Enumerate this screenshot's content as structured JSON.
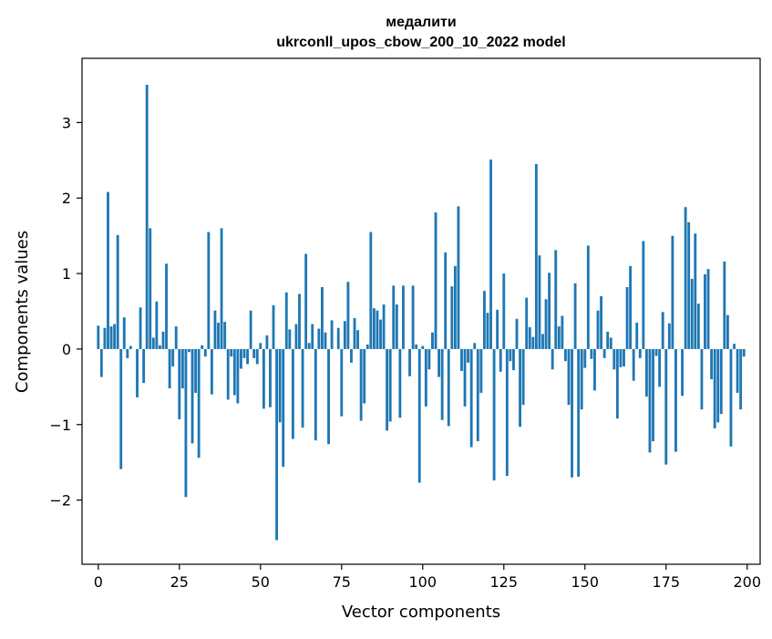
{
  "chart_data": {
    "type": "bar",
    "title": "медалити",
    "subtitle": "ukrconll_upos_cbow_200_10_2022 model",
    "xlabel": "Vector components",
    "ylabel": "Components values",
    "xlim": [
      -5,
      204
    ],
    "ylim": [
      -2.85,
      3.85
    ],
    "xticks": [
      0,
      25,
      50,
      75,
      100,
      125,
      150,
      175,
      200
    ],
    "yticks": [
      -2,
      -1,
      0,
      1,
      2,
      3
    ],
    "ytick_labels": [
      "−2",
      "−1",
      "0",
      "1",
      "2",
      "3"
    ],
    "grid": false,
    "bar_color": "#1f77b4",
    "x": [
      0,
      1,
      2,
      3,
      4,
      5,
      6,
      7,
      8,
      9,
      10,
      11,
      12,
      13,
      14,
      15,
      16,
      17,
      18,
      19,
      20,
      21,
      22,
      23,
      24,
      25,
      26,
      27,
      28,
      29,
      30,
      31,
      32,
      33,
      34,
      35,
      36,
      37,
      38,
      39,
      40,
      41,
      42,
      43,
      44,
      45,
      46,
      47,
      48,
      49,
      50,
      51,
      52,
      53,
      54,
      55,
      56,
      57,
      58,
      59,
      60,
      61,
      62,
      63,
      64,
      65,
      66,
      67,
      68,
      69,
      70,
      71,
      72,
      73,
      74,
      75,
      76,
      77,
      78,
      79,
      80,
      81,
      82,
      83,
      84,
      85,
      86,
      87,
      88,
      89,
      90,
      91,
      92,
      93,
      94,
      95,
      96,
      97,
      98,
      99,
      100,
      101,
      102,
      103,
      104,
      105,
      106,
      107,
      108,
      109,
      110,
      111,
      112,
      113,
      114,
      115,
      116,
      117,
      118,
      119,
      120,
      121,
      122,
      123,
      124,
      125,
      126,
      127,
      128,
      129,
      130,
      131,
      132,
      133,
      134,
      135,
      136,
      137,
      138,
      139,
      140,
      141,
      142,
      143,
      144,
      145,
      146,
      147,
      148,
      149,
      150,
      151,
      152,
      153,
      154,
      155,
      156,
      157,
      158,
      159,
      160,
      161,
      162,
      163,
      164,
      165,
      166,
      167,
      168,
      169,
      170,
      171,
      172,
      173,
      174,
      175,
      176,
      177,
      178,
      179,
      180,
      181,
      182,
      183,
      184,
      185,
      186,
      187,
      188,
      189,
      190,
      191,
      192,
      193,
      194,
      195,
      196,
      197,
      198,
      199
    ],
    "values": [
      0.31,
      -0.37,
      0.28,
      2.08,
      0.3,
      0.33,
      1.51,
      -1.59,
      0.42,
      -0.12,
      0.04,
      0.0,
      -0.64,
      0.55,
      -0.45,
      3.5,
      1.6,
      0.15,
      0.63,
      0.05,
      0.23,
      1.13,
      -0.52,
      -0.23,
      0.3,
      -0.93,
      -0.52,
      -1.96,
      -0.04,
      -1.25,
      -0.58,
      -1.44,
      0.05,
      -0.1,
      1.55,
      -0.6,
      0.51,
      0.35,
      1.6,
      0.36,
      -0.67,
      -0.1,
      -0.61,
      -0.72,
      -0.26,
      -0.12,
      -0.2,
      0.51,
      -0.12,
      -0.2,
      0.08,
      -0.79,
      0.18,
      -0.77,
      0.58,
      -2.53,
      -0.97,
      -1.56,
      0.75,
      0.26,
      -1.19,
      0.33,
      0.73,
      -1.04,
      1.26,
      0.08,
      0.33,
      -1.21,
      0.27,
      0.82,
      0.22,
      -1.26,
      0.38,
      0.0,
      0.28,
      -0.89,
      0.37,
      0.89,
      -0.18,
      0.41,
      0.25,
      -0.95,
      -0.72,
      0.06,
      1.55,
      0.54,
      0.51,
      0.39,
      0.59,
      -1.08,
      -0.96,
      0.84,
      0.59,
      -0.91,
      0.84,
      0.0,
      -0.36,
      0.84,
      0.06,
      -1.77,
      0.04,
      -0.76,
      -0.27,
      0.22,
      1.81,
      -0.37,
      -0.94,
      1.28,
      -1.02,
      0.83,
      1.1,
      1.89,
      -0.29,
      -0.76,
      -0.18,
      -1.3,
      0.08,
      -1.22,
      -0.58,
      0.77,
      0.48,
      2.51,
      -1.74,
      0.52,
      -0.3,
      1.0,
      -1.68,
      -0.16,
      -0.28,
      0.4,
      -1.03,
      -0.74,
      0.68,
      0.29,
      0.16,
      2.45,
      1.24,
      0.2,
      0.66,
      1.01,
      -0.27,
      1.31,
      0.3,
      0.44,
      -0.16,
      -0.74,
      -1.7,
      0.87,
      -1.69,
      -0.8,
      -0.25,
      1.37,
      -0.13,
      -0.55,
      0.51,
      0.7,
      -0.12,
      0.23,
      0.15,
      -0.27,
      -0.92,
      -0.24,
      -0.23,
      0.82,
      1.1,
      -0.42,
      0.35,
      -0.12,
      1.43,
      -0.63,
      -1.37,
      -1.22,
      -0.09,
      -0.5,
      0.49,
      -1.53,
      0.34,
      1.5,
      -1.36,
      0.0,
      -0.62,
      1.88,
      1.68,
      0.93,
      1.53,
      0.6,
      -0.8,
      0.99,
      1.06,
      -0.4,
      -1.05,
      -0.97,
      -0.86,
      1.16,
      0.45,
      -1.29,
      0.07,
      -0.58,
      -0.8,
      -0.1
    ]
  }
}
